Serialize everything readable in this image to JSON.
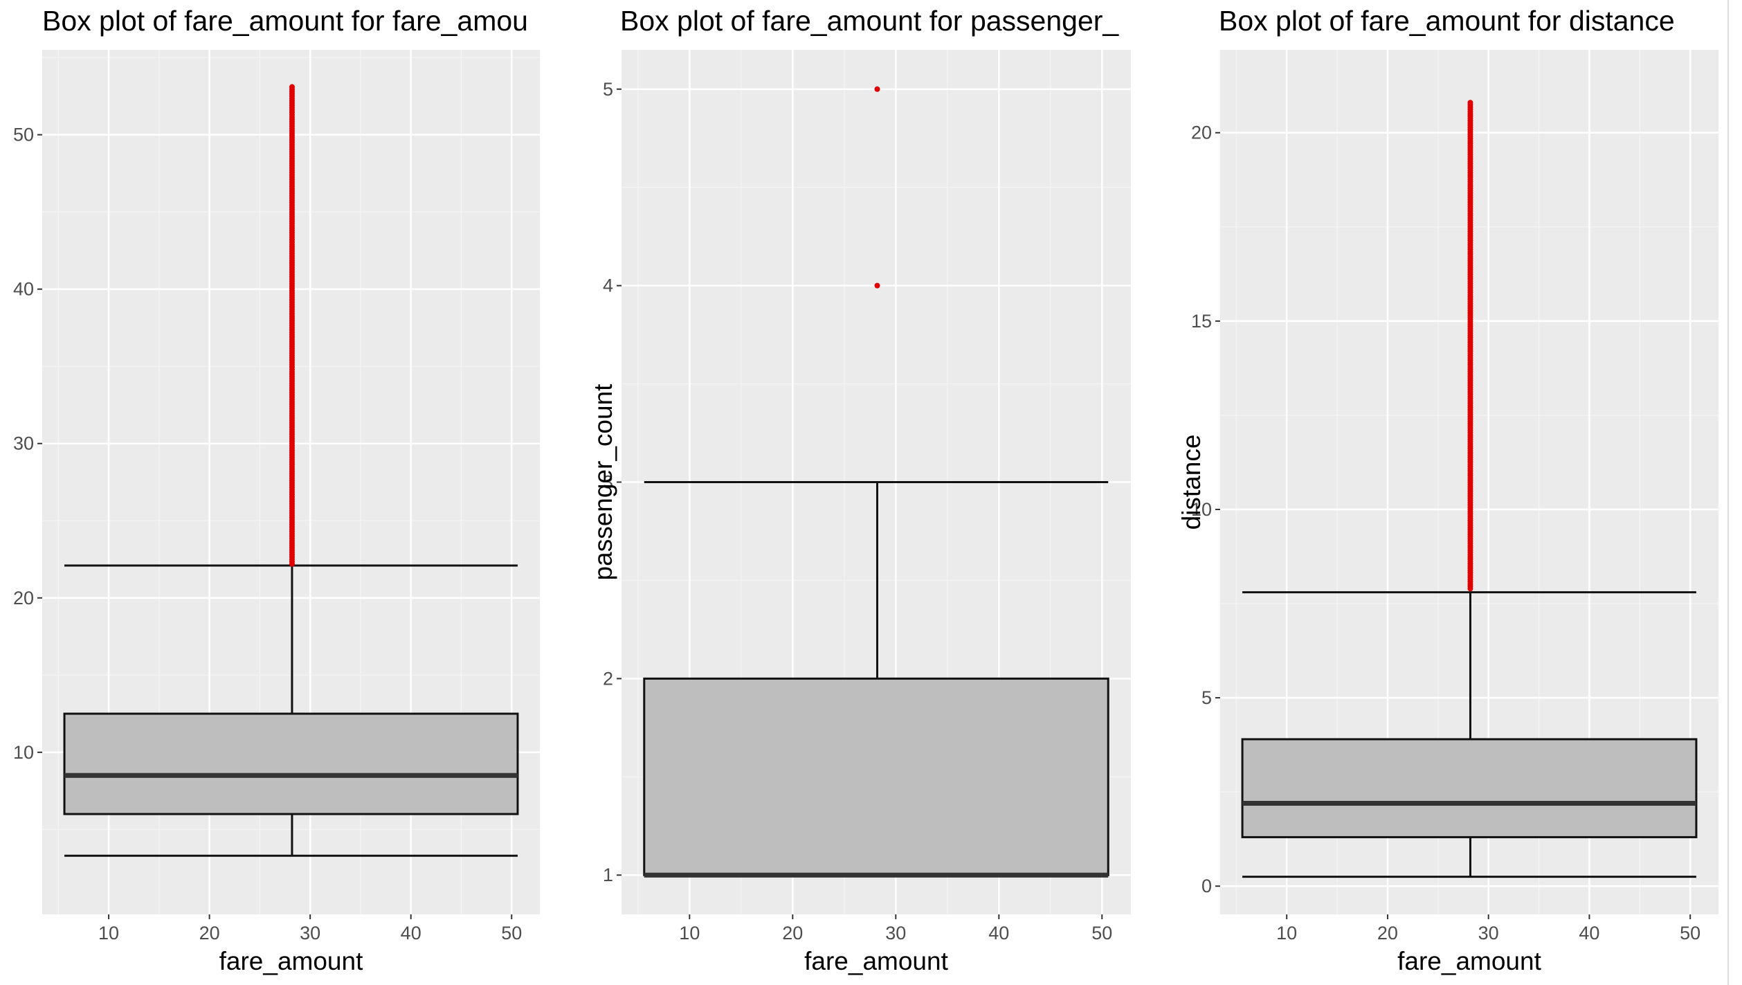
{
  "chart_data": [
    {
      "type": "box",
      "title": "Box plot of fare_amount for fare_amou",
      "xlabel": "fare_amount",
      "ylabel": "",
      "xlim": [
        3.4,
        52.8
      ],
      "ylim": [
        -0.5,
        55.5
      ],
      "x_ticks": [
        10,
        20,
        30,
        40,
        50
      ],
      "y_ticks": [
        10,
        20,
        30,
        40,
        50
      ],
      "box": {
        "x": 28.2,
        "x_left": 5.6,
        "x_right": 50.6,
        "whisker_low": 3.3,
        "q1": 6.0,
        "median": 8.5,
        "q3": 12.5,
        "whisker_high": 22.1
      },
      "outliers": {
        "x": 28.2,
        "range": [
          22.2,
          53.2
        ],
        "step": 0.15,
        "color": "#e00000"
      },
      "grid": true
    },
    {
      "type": "box",
      "title": "Box plot of fare_amount for passenger_",
      "xlabel": "fare_amount",
      "ylabel": "passenger_count",
      "xlim": [
        3.4,
        52.8
      ],
      "ylim": [
        0.8,
        5.2
      ],
      "x_ticks": [
        10,
        20,
        30,
        40,
        50
      ],
      "y_ticks": [
        1,
        2,
        3,
        4,
        5
      ],
      "box": {
        "x": 28.2,
        "x_left": 5.6,
        "x_right": 50.6,
        "whisker_low": 1,
        "q1": 1,
        "median": 1,
        "q3": 2,
        "whisker_high": 3
      },
      "outliers": {
        "x": 28.2,
        "values": [
          4,
          5
        ],
        "color": "#e00000"
      },
      "grid": true
    },
    {
      "type": "box",
      "title": "Box plot of fare_amount for distance",
      "xlabel": "fare_amount",
      "ylabel": "distance",
      "xlim": [
        3.4,
        52.8
      ],
      "ylim": [
        -0.75,
        22.2
      ],
      "x_ticks": [
        10,
        20,
        30,
        40,
        50
      ],
      "y_ticks": [
        0,
        5,
        10,
        15,
        20
      ],
      "box": {
        "x": 28.2,
        "x_left": 5.6,
        "x_right": 50.6,
        "whisker_low": 0.25,
        "q1": 1.3,
        "median": 2.2,
        "q3": 3.9,
        "whisker_high": 7.8
      },
      "outliers": {
        "x": 28.2,
        "range": [
          7.9,
          20.8
        ],
        "step": 0.06,
        "color": "#e00000"
      },
      "grid": true
    }
  ]
}
